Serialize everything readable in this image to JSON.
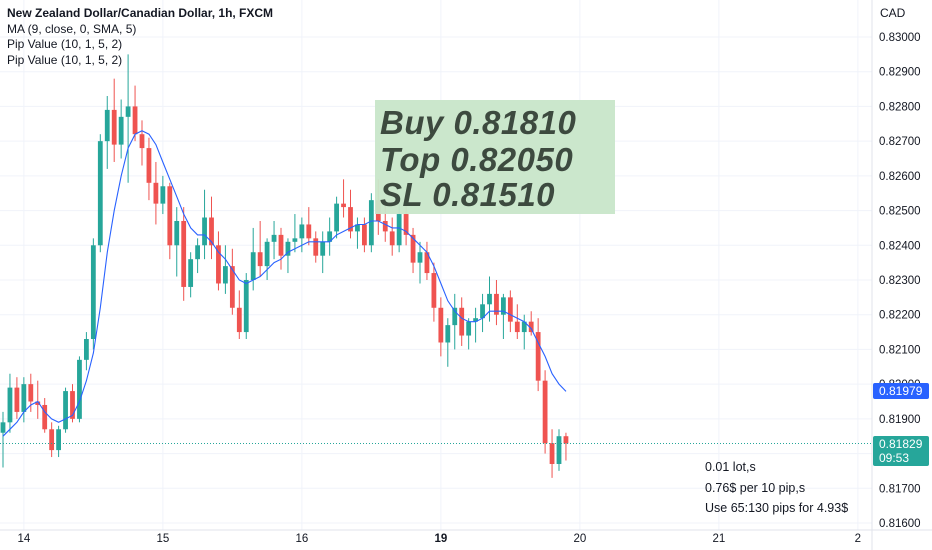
{
  "legend": {
    "title": "New Zealand Dollar/Canadian Dollar, 1h, FXCM",
    "indicators": [
      "MA (9, close, 0, SMA, 5)",
      "Pip Value (10, 1, 5, 2)",
      "Pip Value (10, 1, 5, 2)"
    ]
  },
  "currency": "CAD",
  "annotation": {
    "lines": [
      "Buy 0.81810",
      "Top 0.82050",
      "SL 0.81510"
    ],
    "background": "#c8e6c9"
  },
  "info": {
    "lines": [
      "0.01 lot,s",
      "0.76$ per 10 pip,s",
      "Use 65:130 pips for 4.93$"
    ]
  },
  "price_tags": {
    "ma": {
      "value": "0.81979",
      "color": "#2962ff"
    },
    "last": {
      "value": "0.81829",
      "countdown": "09:53",
      "color": "#26a69a"
    }
  },
  "colors": {
    "up": "#26a69a",
    "down": "#ef5350",
    "ma": "#2962ff",
    "grid": "#f0f3fa",
    "last_line": "#26a69a"
  },
  "chart_data": {
    "type": "candlestick",
    "xlabels": [
      {
        "label": "14",
        "index": 3
      },
      {
        "label": "15",
        "index": 23
      },
      {
        "label": "16",
        "index": 43
      },
      {
        "label": "19",
        "index": 63,
        "bold": true
      },
      {
        "label": "20",
        "index": 83
      },
      {
        "label": "21",
        "index": 103
      },
      {
        "label": "2",
        "index": 123
      }
    ],
    "y_ticks": [
      0.816,
      0.817,
      0.818,
      0.819,
      0.82,
      0.821,
      0.822,
      0.823,
      0.824,
      0.825,
      0.826,
      0.827,
      0.828,
      0.829,
      0.83
    ],
    "ylim": [
      0.8158,
      0.8312
    ],
    "last_price": 0.81829,
    "ma_last": 0.81979,
    "candles": [
      [
        0.8186,
        0.8192,
        0.8176,
        0.8189
      ],
      [
        0.8189,
        0.8203,
        0.8186,
        0.8199
      ],
      [
        0.8199,
        0.8202,
        0.819,
        0.8192
      ],
      [
        0.8192,
        0.8202,
        0.8189,
        0.82
      ],
      [
        0.82,
        0.8203,
        0.8192,
        0.8195
      ],
      [
        0.8195,
        0.8201,
        0.819,
        0.8194
      ],
      [
        0.8194,
        0.8196,
        0.8186,
        0.8187
      ],
      [
        0.8187,
        0.8189,
        0.8179,
        0.8181
      ],
      [
        0.8181,
        0.8188,
        0.8179,
        0.8187
      ],
      [
        0.8187,
        0.8199,
        0.8186,
        0.8198
      ],
      [
        0.8198,
        0.82,
        0.8189,
        0.819
      ],
      [
        0.819,
        0.8208,
        0.8189,
        0.8207
      ],
      [
        0.8207,
        0.8215,
        0.8204,
        0.8213
      ],
      [
        0.8213,
        0.8242,
        0.821,
        0.824
      ],
      [
        0.824,
        0.8272,
        0.8238,
        0.827
      ],
      [
        0.827,
        0.8283,
        0.8262,
        0.8279
      ],
      [
        0.8279,
        0.8288,
        0.8264,
        0.8269
      ],
      [
        0.8269,
        0.8282,
        0.8265,
        0.8277
      ],
      [
        0.8277,
        0.8295,
        0.8258,
        0.828
      ],
      [
        0.828,
        0.8286,
        0.827,
        0.8272
      ],
      [
        0.8272,
        0.8276,
        0.8263,
        0.8268
      ],
      [
        0.8268,
        0.8271,
        0.8253,
        0.8258
      ],
      [
        0.8258,
        0.8264,
        0.8246,
        0.8252
      ],
      [
        0.8252,
        0.826,
        0.8249,
        0.8257
      ],
      [
        0.8257,
        0.8258,
        0.8236,
        0.824
      ],
      [
        0.824,
        0.8251,
        0.8231,
        0.8247
      ],
      [
        0.8247,
        0.8251,
        0.8224,
        0.8228
      ],
      [
        0.8228,
        0.8238,
        0.8225,
        0.8236
      ],
      [
        0.8236,
        0.8242,
        0.8232,
        0.824
      ],
      [
        0.824,
        0.8256,
        0.8236,
        0.8248
      ],
      [
        0.8248,
        0.8254,
        0.8236,
        0.824
      ],
      [
        0.824,
        0.8244,
        0.8227,
        0.8229
      ],
      [
        0.8229,
        0.824,
        0.8226,
        0.8234
      ],
      [
        0.8234,
        0.8239,
        0.822,
        0.8222
      ],
      [
        0.8222,
        0.8227,
        0.8213,
        0.8215
      ],
      [
        0.8215,
        0.8232,
        0.8213,
        0.823
      ],
      [
        0.823,
        0.8245,
        0.8227,
        0.8238
      ],
      [
        0.8238,
        0.8247,
        0.8231,
        0.8234
      ],
      [
        0.8234,
        0.8242,
        0.823,
        0.8241
      ],
      [
        0.8241,
        0.8247,
        0.8236,
        0.8243
      ],
      [
        0.8243,
        0.8245,
        0.8233,
        0.8237
      ],
      [
        0.8237,
        0.8242,
        0.8232,
        0.8241
      ],
      [
        0.8241,
        0.8249,
        0.8238,
        0.8242
      ],
      [
        0.8242,
        0.8248,
        0.8238,
        0.8246
      ],
      [
        0.8246,
        0.8251,
        0.824,
        0.8242
      ],
      [
        0.8242,
        0.8244,
        0.8235,
        0.8237
      ],
      [
        0.8237,
        0.8244,
        0.8232,
        0.8241
      ],
      [
        0.8241,
        0.8248,
        0.8237,
        0.8244
      ],
      [
        0.8244,
        0.8254,
        0.8242,
        0.8252
      ],
      [
        0.8252,
        0.8259,
        0.8248,
        0.8251
      ],
      [
        0.8251,
        0.8256,
        0.8242,
        0.8244
      ],
      [
        0.8244,
        0.8248,
        0.8239,
        0.8246
      ],
      [
        0.8246,
        0.8248,
        0.8238,
        0.824
      ],
      [
        0.824,
        0.8255,
        0.8238,
        0.8253
      ],
      [
        0.8253,
        0.8259,
        0.8243,
        0.8247
      ],
      [
        0.8247,
        0.8252,
        0.8241,
        0.8244
      ],
      [
        0.8244,
        0.8248,
        0.8237,
        0.824
      ],
      [
        0.824,
        0.8254,
        0.8238,
        0.8249
      ],
      [
        0.8249,
        0.8252,
        0.824,
        0.8243
      ],
      [
        0.8243,
        0.8245,
        0.8232,
        0.8235
      ],
      [
        0.8235,
        0.8241,
        0.8229,
        0.8238
      ],
      [
        0.8238,
        0.8241,
        0.823,
        0.8232
      ],
      [
        0.8232,
        0.8235,
        0.8218,
        0.8222
      ],
      [
        0.8222,
        0.8225,
        0.8208,
        0.8212
      ],
      [
        0.8212,
        0.8219,
        0.8205,
        0.8217
      ],
      [
        0.8217,
        0.8226,
        0.821,
        0.8222
      ],
      [
        0.8222,
        0.8225,
        0.8211,
        0.8214
      ],
      [
        0.8214,
        0.8219,
        0.821,
        0.8218
      ],
      [
        0.8218,
        0.8222,
        0.8212,
        0.8219
      ],
      [
        0.8219,
        0.8226,
        0.8215,
        0.8223
      ],
      [
        0.8223,
        0.8231,
        0.8218,
        0.8226
      ],
      [
        0.8226,
        0.823,
        0.8217,
        0.822
      ],
      [
        0.822,
        0.8226,
        0.8213,
        0.8225
      ],
      [
        0.8225,
        0.8227,
        0.8215,
        0.8218
      ],
      [
        0.8218,
        0.8223,
        0.8213,
        0.8215
      ],
      [
        0.8215,
        0.822,
        0.821,
        0.8218
      ],
      [
        0.8218,
        0.8221,
        0.8214,
        0.8215
      ],
      [
        0.8215,
        0.8219,
        0.8198,
        0.8201
      ],
      [
        0.8201,
        0.8204,
        0.818,
        0.8183
      ],
      [
        0.8183,
        0.8187,
        0.8173,
        0.8177
      ],
      [
        0.8177,
        0.8187,
        0.8175,
        0.8185
      ],
      [
        0.8185,
        0.8186,
        0.8178,
        0.81829
      ]
    ],
    "ma": [
      0.8185,
      0.8187,
      0.8189,
      0.8192,
      0.8194,
      0.8195,
      0.8192,
      0.819,
      0.8189,
      0.819,
      0.8191,
      0.8195,
      0.8201,
      0.8209,
      0.8222,
      0.8238,
      0.825,
      0.826,
      0.8268,
      0.8272,
      0.8273,
      0.8272,
      0.8269,
      0.8264,
      0.8259,
      0.8254,
      0.8249,
      0.8245,
      0.8243,
      0.8243,
      0.8241,
      0.8238,
      0.8236,
      0.8233,
      0.823,
      0.8229,
      0.823,
      0.8231,
      0.8233,
      0.8235,
      0.8236,
      0.8238,
      0.8239,
      0.824,
      0.8241,
      0.8241,
      0.8241,
      0.8241,
      0.8243,
      0.8244,
      0.8245,
      0.8246,
      0.8246,
      0.8247,
      0.8247,
      0.8246,
      0.8245,
      0.8245,
      0.8244,
      0.8242,
      0.824,
      0.8238,
      0.8234,
      0.8229,
      0.8224,
      0.8221,
      0.8219,
      0.8218,
      0.8218,
      0.8219,
      0.8221,
      0.8221,
      0.8221,
      0.822,
      0.8219,
      0.8218,
      0.8216,
      0.8212,
      0.8208,
      0.8203,
      0.82,
      0.81979
    ]
  }
}
